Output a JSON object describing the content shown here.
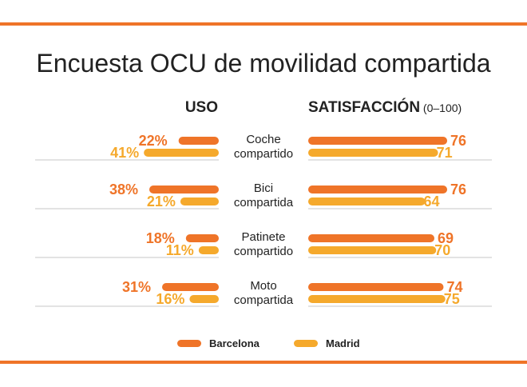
{
  "chart_data": {
    "type": "bar",
    "title": "Encuesta OCU de movilidad compartida",
    "panels": [
      {
        "title": "USO",
        "unit": "%"
      },
      {
        "title": "SATISFACCIÓN",
        "subtitle": "(0–100)",
        "unit": ""
      }
    ],
    "categories": [
      "Coche compartido",
      "Bici compartida",
      "Patinete compartido",
      "Moto compartida"
    ],
    "category_lines": [
      [
        "Coche",
        "compartido"
      ],
      [
        "Bici",
        "compartida"
      ],
      [
        "Patinete",
        "compartido"
      ],
      [
        "Moto",
        "compartida"
      ]
    ],
    "series": [
      {
        "name": "Barcelona",
        "color": "#EF7428",
        "uso": [
          22,
          38,
          18,
          31
        ],
        "satisfaccion": [
          76,
          76,
          69,
          74
        ]
      },
      {
        "name": "Madrid",
        "color": "#F5A92C",
        "uso": [
          41,
          21,
          11,
          16
        ],
        "satisfaccion": [
          71,
          64,
          70,
          75
        ]
      }
    ],
    "legend": "bottom-center"
  }
}
